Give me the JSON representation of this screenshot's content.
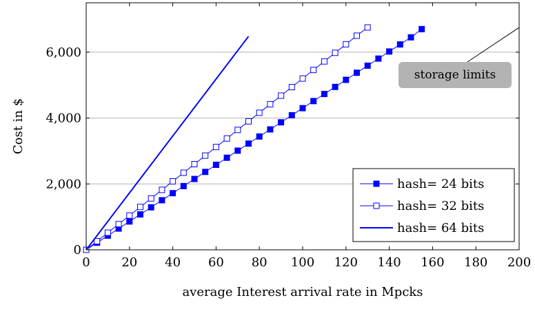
{
  "chart_data": {
    "type": "line",
    "title": "",
    "xlabel": "average Interest arrival rate in Mpcks",
    "ylabel": "Cost in $",
    "xlim": [
      0,
      200
    ],
    "ylim": [
      0,
      7500
    ],
    "x_ticks": [
      0,
      20,
      40,
      60,
      80,
      100,
      120,
      140,
      160,
      180,
      200
    ],
    "x_tick_labels": [
      "0",
      "20",
      "40",
      "60",
      "80",
      "100",
      "120",
      "140",
      "160",
      "180",
      "200"
    ],
    "y_ticks": [
      0,
      2000,
      4000,
      6000
    ],
    "y_tick_labels": [
      "0",
      "2,000",
      "4,000",
      "6,000"
    ],
    "grid": "horizontal",
    "legend_position": "bottom-right",
    "series": [
      {
        "name": "hash= 24 bits",
        "color": "#0000ff",
        "marker": "filled-square",
        "line_width": "thin",
        "x": [
          0,
          5,
          10,
          15,
          20,
          25,
          30,
          35,
          40,
          45,
          50,
          55,
          60,
          65,
          70,
          75,
          80,
          85,
          90,
          95,
          100,
          105,
          110,
          115,
          120,
          125,
          130,
          135,
          140,
          145,
          150,
          155
        ],
        "values": [
          0,
          215,
          430,
          645,
          860,
          1075,
          1290,
          1505,
          1720,
          1935,
          2150,
          2365,
          2580,
          2795,
          3010,
          3225,
          3440,
          3655,
          3870,
          4085,
          4300,
          4515,
          4730,
          4945,
          5160,
          5375,
          5590,
          5805,
          6020,
          6235,
          6450,
          6700
        ]
      },
      {
        "name": "hash= 32 bits",
        "color": "#0000ff",
        "marker": "open-square",
        "line_width": "thin",
        "x": [
          0,
          5,
          10,
          15,
          20,
          25,
          30,
          35,
          40,
          45,
          50,
          55,
          60,
          65,
          70,
          75,
          80,
          85,
          90,
          95,
          100,
          105,
          110,
          115,
          120,
          125,
          130
        ],
        "values": [
          0,
          260,
          520,
          780,
          1040,
          1300,
          1560,
          1820,
          2080,
          2340,
          2600,
          2860,
          3120,
          3380,
          3640,
          3900,
          4160,
          4420,
          4680,
          4940,
          5200,
          5460,
          5720,
          5980,
          6240,
          6500,
          6750
        ]
      },
      {
        "name": "hash= 64 bits",
        "color": "#0000ff",
        "marker": "none",
        "line_width": "thick",
        "x": [
          0,
          75
        ],
        "values": [
          0,
          6480
        ]
      }
    ],
    "annotations": [
      {
        "text": "storage limits",
        "points_to": {
          "x": 200,
          "y": 6750
        },
        "box_color": "#b3b3b3"
      }
    ]
  }
}
